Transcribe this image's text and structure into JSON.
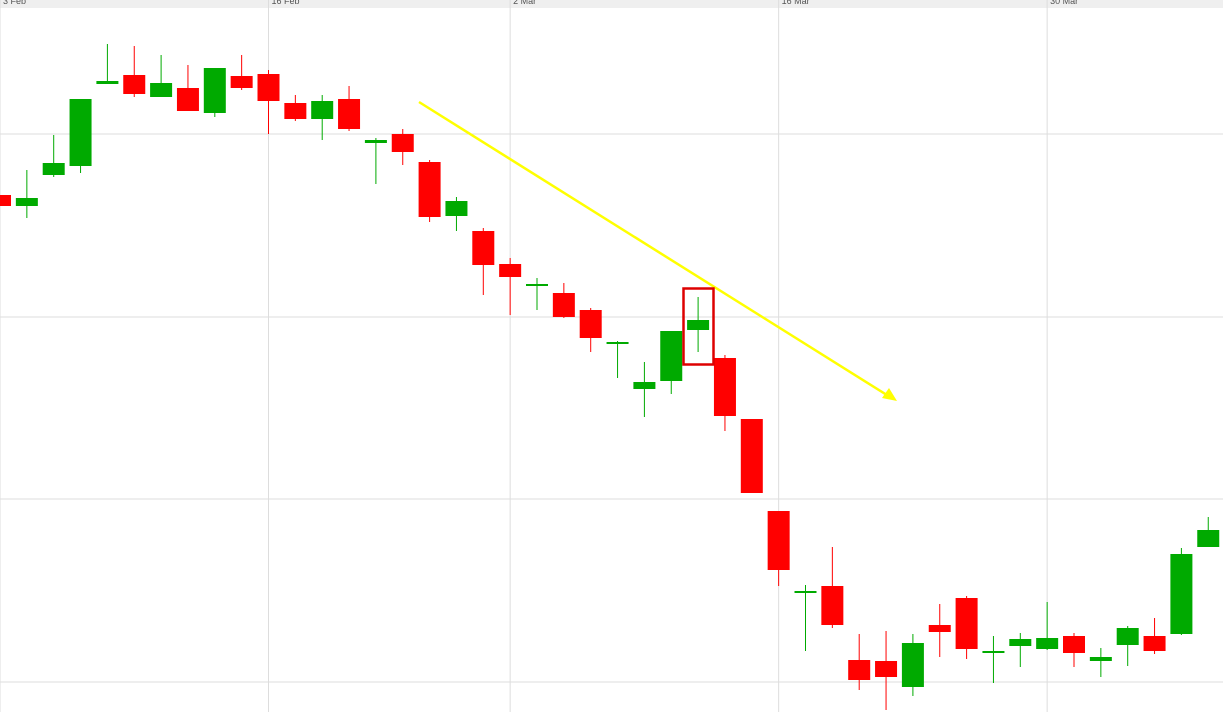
{
  "chart_data": {
    "type": "candlestick",
    "categories": [
      "3 Feb",
      null,
      null,
      null,
      null,
      null,
      null,
      null,
      null,
      null,
      "16 Feb",
      null,
      null,
      null,
      null,
      null,
      null,
      null,
      null,
      "2 Mar",
      null,
      null,
      null,
      null,
      null,
      null,
      null,
      null,
      null,
      "16 Mar",
      null,
      null,
      null,
      null,
      null,
      null,
      null,
      null,
      null,
      "30 Mar",
      null,
      null,
      null,
      null,
      null,
      null
    ],
    "open": [
      517,
      506,
      537,
      546,
      628,
      637,
      615,
      624,
      599,
      636,
      638,
      609,
      593,
      613,
      569,
      578,
      550,
      496,
      481,
      448,
      427,
      419,
      402,
      370,
      323,
      331,
      382,
      354,
      293,
      201,
      121,
      126,
      52,
      51,
      25,
      87,
      114,
      61,
      66,
      63,
      76,
      51,
      67,
      76,
      78,
      165
    ],
    "high": [
      517,
      542,
      577,
      613,
      668,
      666,
      657,
      647,
      644,
      657,
      642,
      617,
      617,
      626,
      574,
      583,
      552,
      515,
      484,
      454,
      434,
      429,
      404,
      371,
      350,
      381,
      415,
      357,
      293,
      201,
      127,
      165,
      78,
      81,
      78,
      108,
      116,
      76,
      79,
      110,
      79,
      64,
      86,
      94,
      164,
      195
    ],
    "low": [
      506,
      494,
      535,
      539,
      628,
      615,
      615,
      601,
      595,
      622,
      578,
      591,
      572,
      581,
      528,
      547,
      490,
      481,
      417,
      397,
      402,
      394,
      360,
      334,
      295,
      318,
      360,
      281,
      219,
      126,
      61,
      84,
      22,
      2,
      16,
      55,
      53,
      29,
      45,
      62,
      45,
      35,
      46,
      58,
      77,
      165
    ],
    "close": [
      506,
      514,
      549,
      613,
      631,
      618,
      629,
      601,
      644,
      624,
      611,
      593,
      611,
      583,
      572,
      560,
      495,
      511,
      447,
      435,
      428,
      395,
      374,
      370,
      330,
      381,
      392,
      296,
      219,
      142,
      121,
      87,
      32,
      35,
      69,
      80,
      63,
      61,
      73,
      74,
      59,
      55,
      84,
      61,
      158,
      182
    ],
    "up_color": "#00aa00",
    "down_color": "#ff0000",
    "ylim": [
      0,
      712
    ],
    "ygrid": [
      578,
      395,
      213,
      30
    ],
    "grid": true
  }
}
